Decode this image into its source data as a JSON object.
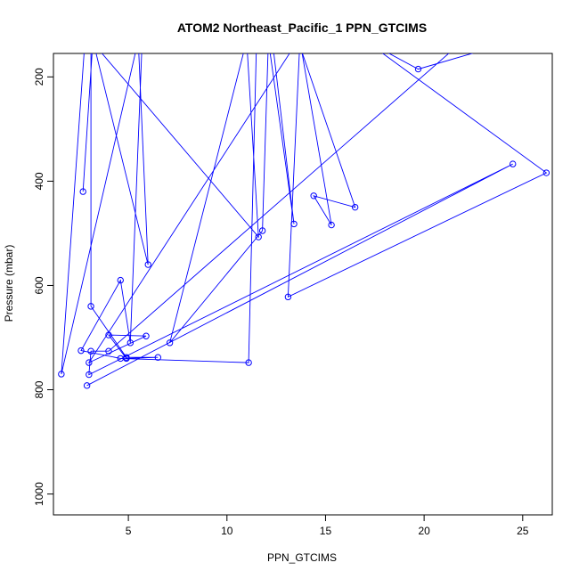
{
  "chart_data": {
    "type": "line",
    "title": "ATOM2 Northeast_Pacific_1 PPN_GTCIMS",
    "xlabel": "PPN_GTCIMS",
    "ylabel": "Pressure (mbar)",
    "xlim": [
      1.2,
      26.5
    ],
    "ylim": [
      1040,
      155
    ],
    "y_reversed": true,
    "x_ticks": [
      5,
      10,
      15,
      20,
      25
    ],
    "y_ticks": [
      200,
      400,
      600,
      800,
      1000
    ],
    "grid": false,
    "legend": "none",
    "line_color": "#0000FF",
    "marker": "open-circle",
    "series": [
      {
        "x": [
          2.7,
          3.2,
          6.0,
          5.5,
          1.6,
          2.8,
          5.7,
          5.1,
          4.6,
          2.6,
          4.6,
          11.1,
          11.5,
          12.3,
          13.4,
          12.1,
          11.8,
          7.1,
          11.0,
          11.6,
          3.1,
          3.1,
          4.9,
          6.5,
          4.9,
          4.0,
          5.9,
          3.0,
          13.6,
          16.5,
          14.4,
          15.3,
          13.7,
          13.1,
          26.2,
          17.0,
          19.7,
          24.7,
          22.0,
          4.0,
          3.1,
          3.0,
          24.5,
          2.9
        ],
        "y": [
          420,
          130,
          560,
          130,
          770,
          130,
          130,
          710,
          590,
          725,
          740,
          748,
          130,
          130,
          482,
          130,
          495,
          710,
          130,
          507,
          130,
          640,
          738,
          738,
          740,
          695,
          697,
          748,
          130,
          450,
          428,
          484,
          130,
          622,
          384,
          130,
          185,
          130,
          130,
          726,
          726,
          771,
          367,
          792
        ]
      }
    ]
  }
}
